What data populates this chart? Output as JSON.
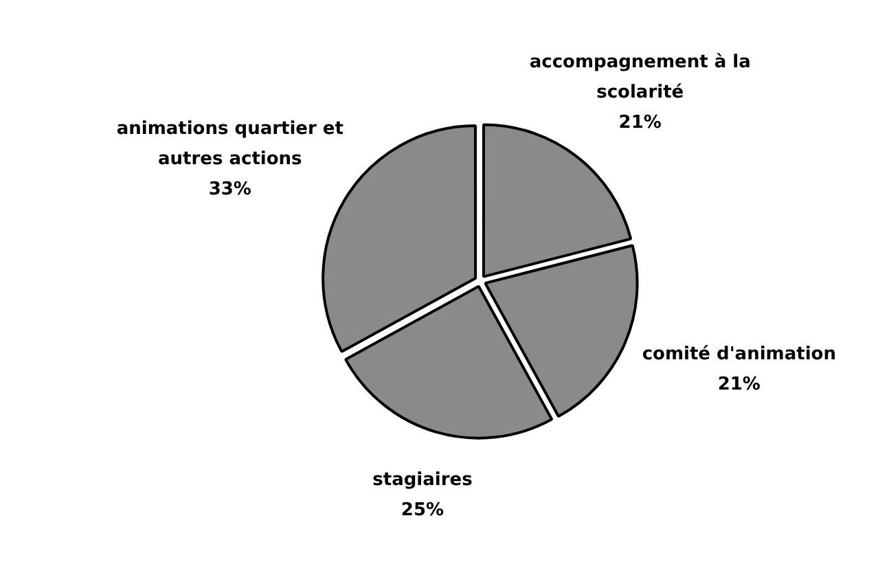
{
  "chart_data": {
    "type": "pie",
    "categories": [
      "accompagnement à la scolarité",
      "comité d'animation",
      "stagiaires",
      "animations quartier et autres actions"
    ],
    "values": [
      21,
      21,
      25,
      33
    ],
    "value_labels": [
      "21%",
      "21%",
      "25%",
      "33%"
    ],
    "colors": [
      "#8a8a8a",
      "#8a8a8a",
      "#8a8a8a",
      "#8a8a8a"
    ],
    "legend": false
  }
}
